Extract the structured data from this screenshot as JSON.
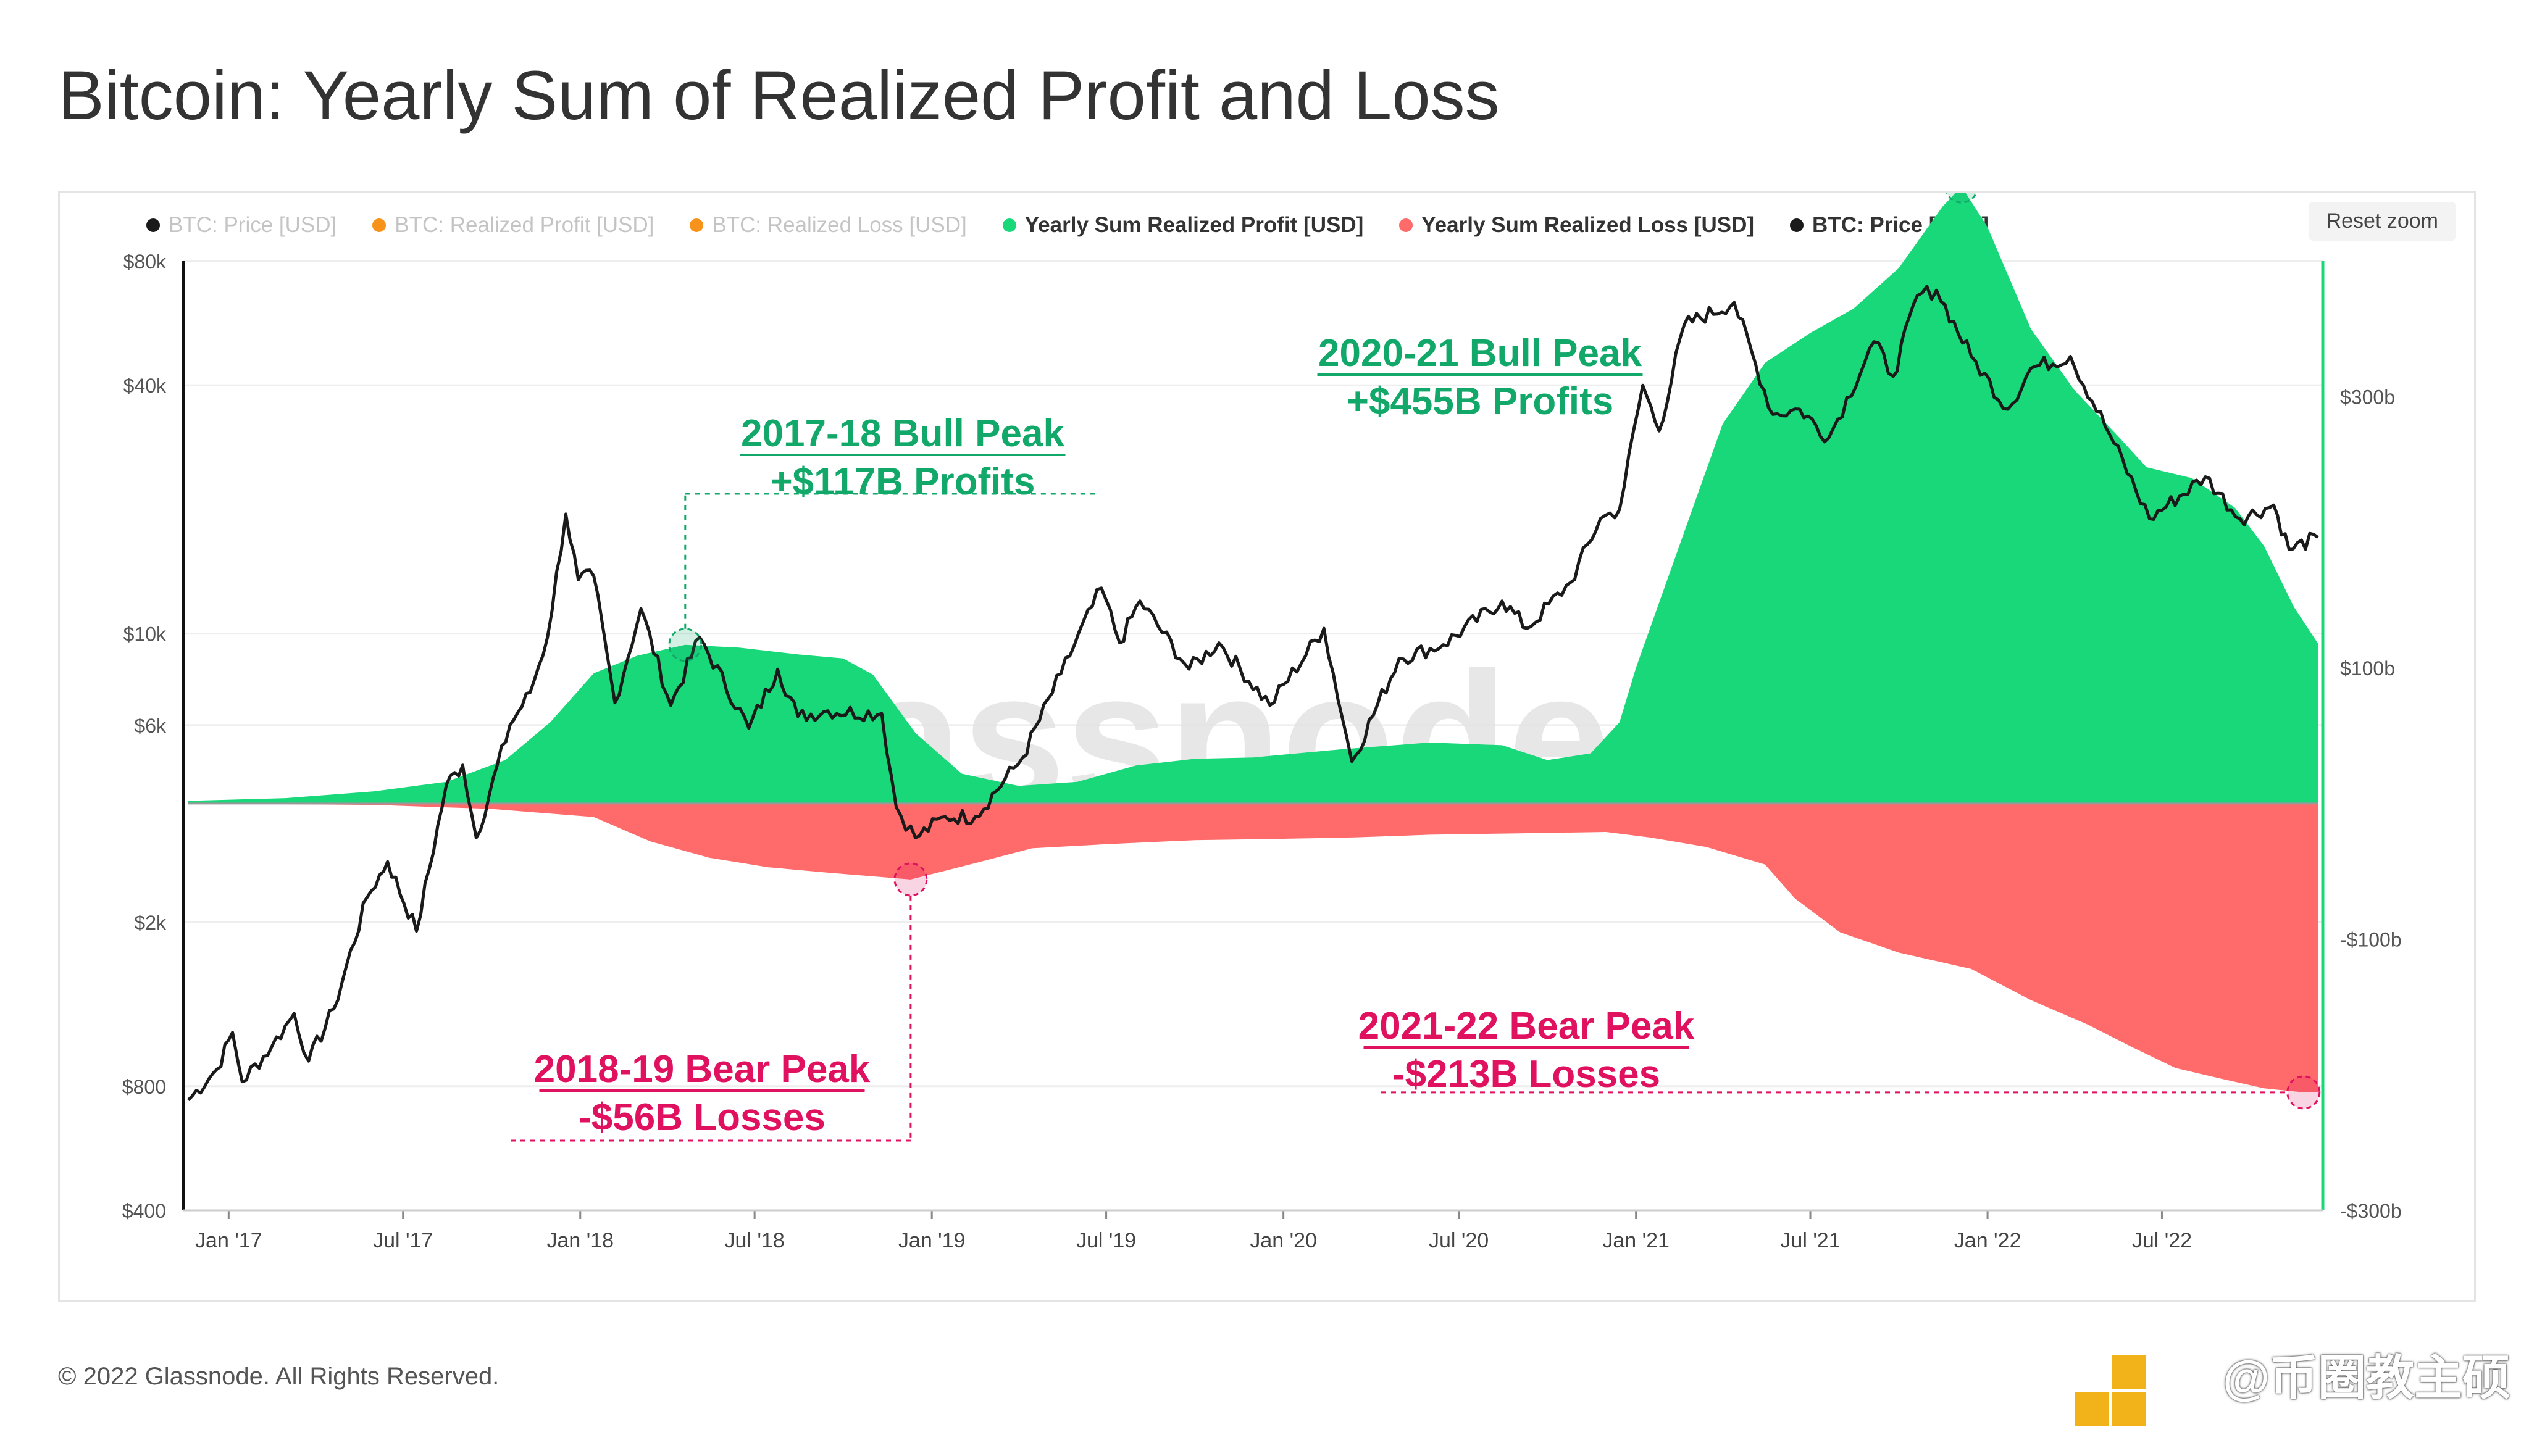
{
  "title": "Bitcoin: Yearly Sum of Realized Profit and Loss",
  "reset_zoom_label": "Reset zoom",
  "footer": "© 2022 Glassnode. All Rights Reserved.",
  "corner_text": "@币圈教主硕",
  "watermark": "glassnode",
  "legend": [
    {
      "label": "BTC: Price [USD]",
      "color": "#1a1a1a",
      "state": "muted"
    },
    {
      "label": "BTC: Realized Profit [USD]",
      "color": "#f7931a",
      "state": "muted"
    },
    {
      "label": "BTC: Realized Loss [USD]",
      "color": "#f7931a",
      "state": "muted"
    },
    {
      "label": "Yearly Sum Realized Profit [USD]",
      "color": "#19d87a",
      "state": "active"
    },
    {
      "label": "Yearly Sum Realized Loss [USD]",
      "color": "#ff6b6b",
      "state": "active"
    },
    {
      "label": "BTC: Price [USD]",
      "color": "#1a1a1a",
      "state": "active"
    }
  ],
  "annotations": [
    {
      "line1": "2017-18 Bull Peak",
      "line2": "+$117B Profits",
      "color": "#11a86a",
      "date": "2018-04-20",
      "value": 117
    },
    {
      "line1": "2020-21 Bull Peak",
      "line2": "+$455B Profits",
      "color": "#11a86a",
      "date": "2021-12-05",
      "value": 455
    },
    {
      "line1": "2018-19 Bear Peak",
      "line2": "-$56B Losses",
      "color": "#e0115f",
      "date": "2018-12-10",
      "value": -56
    },
    {
      "line1": "2021-22 Bear Peak",
      "line2": "-$213B Losses",
      "color": "#e0115f",
      "date": "2022-11-25",
      "value": -213
    }
  ],
  "chart_data": {
    "type": "area",
    "x_axis": {
      "ticks": [
        "Jan '17",
        "Jul '17",
        "Jan '18",
        "Jul '18",
        "Jan '19",
        "Jul '19",
        "Jan '20",
        "Jul '20",
        "Jan '21",
        "Jul '21",
        "Jan '22",
        "Jul '22"
      ],
      "tick_dates": [
        "2017-01-01",
        "2017-07-01",
        "2018-01-01",
        "2018-07-01",
        "2019-01-01",
        "2019-07-01",
        "2020-01-01",
        "2020-07-01",
        "2021-01-01",
        "2021-07-01",
        "2022-01-01",
        "2022-07-01"
      ],
      "range": [
        "2016-11-15",
        "2022-12-15"
      ]
    },
    "y_left": {
      "scale": "log",
      "ticks": [
        "$80k",
        "$40k",
        "$10k",
        "$6k",
        "$2k",
        "$800",
        "$400"
      ],
      "tick_values": [
        80000,
        40000,
        10000,
        6000,
        2000,
        800,
        400
      ],
      "range": [
        400,
        80000
      ]
    },
    "y_right": {
      "scale": "linear",
      "ticks": [
        "$300b",
        "$100b",
        "-$100b",
        "-$300b"
      ],
      "tick_values": [
        300,
        100,
        -100,
        -300
      ],
      "range": [
        -300,
        400
      ]
    },
    "grid": true,
    "series": [
      {
        "name": "Yearly Sum Realized Profit [USD]",
        "color": "#19d87a",
        "axis": "right",
        "unit": "billion USD",
        "points": [
          [
            "2016-11-20",
            2
          ],
          [
            "2017-03-01",
            4
          ],
          [
            "2017-06-01",
            9
          ],
          [
            "2017-08-15",
            16
          ],
          [
            "2017-10-15",
            32
          ],
          [
            "2017-12-01",
            60
          ],
          [
            "2018-01-15",
            96
          ],
          [
            "2018-03-01",
            109
          ],
          [
            "2018-04-20",
            117
          ],
          [
            "2018-06-15",
            115
          ],
          [
            "2018-08-15",
            110
          ],
          [
            "2018-10-01",
            107
          ],
          [
            "2018-11-01",
            95
          ],
          [
            "2018-12-15",
            52
          ],
          [
            "2019-02-01",
            22
          ],
          [
            "2019-04-01",
            13
          ],
          [
            "2019-06-01",
            16
          ],
          [
            "2019-08-01",
            28
          ],
          [
            "2019-10-01",
            33
          ],
          [
            "2019-12-01",
            34
          ],
          [
            "2020-03-01",
            40
          ],
          [
            "2020-06-01",
            45
          ],
          [
            "2020-08-15",
            43
          ],
          [
            "2020-10-01",
            32
          ],
          [
            "2020-11-15",
            37
          ],
          [
            "2020-12-15",
            60
          ],
          [
            "2021-01-01",
            100
          ],
          [
            "2021-02-15",
            190
          ],
          [
            "2021-04-01",
            280
          ],
          [
            "2021-05-15",
            325
          ],
          [
            "2021-07-01",
            347
          ],
          [
            "2021-08-15",
            365
          ],
          [
            "2021-10-01",
            395
          ],
          [
            "2021-11-15",
            440
          ],
          [
            "2021-12-05",
            455
          ],
          [
            "2022-01-01",
            425
          ],
          [
            "2022-02-15",
            350
          ],
          [
            "2022-04-01",
            305
          ],
          [
            "2022-05-15",
            272
          ],
          [
            "2022-06-15",
            248
          ],
          [
            "2022-08-01",
            240
          ],
          [
            "2022-09-15",
            218
          ],
          [
            "2022-10-15",
            190
          ],
          [
            "2022-11-15",
            145
          ],
          [
            "2022-12-10",
            118
          ]
        ]
      },
      {
        "name": "Yearly Sum Realized Loss [USD]",
        "color": "#ff6b6b",
        "axis": "right",
        "unit": "billion USD",
        "points": [
          [
            "2016-11-20",
            0
          ],
          [
            "2017-06-01",
            -1
          ],
          [
            "2017-10-01",
            -4
          ],
          [
            "2018-01-15",
            -10
          ],
          [
            "2018-03-15",
            -28
          ],
          [
            "2018-05-15",
            -40
          ],
          [
            "2018-07-15",
            -47
          ],
          [
            "2018-09-15",
            -51
          ],
          [
            "2018-12-10",
            -56
          ],
          [
            "2019-02-15",
            -44
          ],
          [
            "2019-04-15",
            -33
          ],
          [
            "2019-07-01",
            -30
          ],
          [
            "2019-10-01",
            -27
          ],
          [
            "2020-01-01",
            -26
          ],
          [
            "2020-03-15",
            -25
          ],
          [
            "2020-06-01",
            -23
          ],
          [
            "2020-09-01",
            -22
          ],
          [
            "2020-12-01",
            -21
          ],
          [
            "2021-01-15",
            -25
          ],
          [
            "2021-03-15",
            -32
          ],
          [
            "2021-05-15",
            -45
          ],
          [
            "2021-06-15",
            -70
          ],
          [
            "2021-08-01",
            -95
          ],
          [
            "2021-10-01",
            -110
          ],
          [
            "2021-12-15",
            -122
          ],
          [
            "2022-02-15",
            -145
          ],
          [
            "2022-04-15",
            -163
          ],
          [
            "2022-06-01",
            -180
          ],
          [
            "2022-07-15",
            -195
          ],
          [
            "2022-09-01",
            -203
          ],
          [
            "2022-10-15",
            -210
          ],
          [
            "2022-11-25",
            -213
          ],
          [
            "2022-12-10",
            -213
          ]
        ]
      },
      {
        "name": "BTC: Price [USD]",
        "color": "#1a1a1a",
        "axis": "left",
        "unit": "USD",
        "points": [
          [
            "2016-11-20",
            740
          ],
          [
            "2016-12-20",
            880
          ],
          [
            "2017-01-05",
            1080
          ],
          [
            "2017-01-15",
            820
          ],
          [
            "2017-02-15",
            1000
          ],
          [
            "2017-03-10",
            1200
          ],
          [
            "2017-03-25",
            920
          ],
          [
            "2017-04-20",
            1230
          ],
          [
            "2017-05-25",
            2300
          ],
          [
            "2017-06-15",
            2800
          ],
          [
            "2017-07-15",
            1900
          ],
          [
            "2017-08-15",
            4300
          ],
          [
            "2017-09-01",
            4800
          ],
          [
            "2017-09-15",
            3200
          ],
          [
            "2017-10-20",
            6000
          ],
          [
            "2017-11-10",
            7200
          ],
          [
            "2017-11-28",
            9800
          ],
          [
            "2017-12-17",
            19500
          ],
          [
            "2017-12-30",
            13500
          ],
          [
            "2018-01-15",
            13800
          ],
          [
            "2018-02-06",
            6800
          ],
          [
            "2018-03-05",
            11500
          ],
          [
            "2018-04-05",
            6700
          ],
          [
            "2018-05-05",
            9800
          ],
          [
            "2018-06-25",
            5900
          ],
          [
            "2018-07-25",
            8200
          ],
          [
            "2018-08-15",
            6300
          ],
          [
            "2018-09-15",
            6500
          ],
          [
            "2018-11-10",
            6400
          ],
          [
            "2018-11-25",
            3800
          ],
          [
            "2018-12-15",
            3200
          ],
          [
            "2019-01-15",
            3600
          ],
          [
            "2019-02-15",
            3600
          ],
          [
            "2019-04-05",
            5000
          ],
          [
            "2019-05-15",
            8000
          ],
          [
            "2019-06-26",
            12900
          ],
          [
            "2019-07-15",
            9500
          ],
          [
            "2019-08-05",
            12000
          ],
          [
            "2019-09-25",
            8200
          ],
          [
            "2019-10-26",
            9500
          ],
          [
            "2019-12-18",
            6700
          ],
          [
            "2020-02-12",
            10300
          ],
          [
            "2020-03-12",
            4900
          ],
          [
            "2020-04-30",
            8700
          ],
          [
            "2020-06-15",
            9400
          ],
          [
            "2020-08-15",
            12000
          ],
          [
            "2020-09-10",
            10300
          ],
          [
            "2020-10-25",
            13300
          ],
          [
            "2020-11-25",
            19000
          ],
          [
            "2020-12-15",
            20000
          ],
          [
            "2021-01-08",
            40000
          ],
          [
            "2021-01-25",
            31000
          ],
          [
            "2021-02-20",
            56000
          ],
          [
            "2021-04-13",
            63500
          ],
          [
            "2021-05-23",
            34000
          ],
          [
            "2021-06-20",
            35000
          ],
          [
            "2021-07-20",
            29800
          ],
          [
            "2021-09-05",
            51000
          ],
          [
            "2021-09-25",
            42000
          ],
          [
            "2021-10-20",
            66000
          ],
          [
            "2021-11-09",
            68000
          ],
          [
            "2021-12-15",
            47000
          ],
          [
            "2022-01-22",
            35000
          ],
          [
            "2022-02-15",
            44000
          ],
          [
            "2022-03-28",
            47000
          ],
          [
            "2022-05-12",
            29000
          ],
          [
            "2022-06-18",
            19000
          ],
          [
            "2022-08-15",
            24000
          ],
          [
            "2022-09-20",
            19000
          ],
          [
            "2022-10-25",
            20500
          ],
          [
            "2022-11-10",
            16000
          ],
          [
            "2022-12-10",
            17100
          ]
        ]
      }
    ]
  }
}
